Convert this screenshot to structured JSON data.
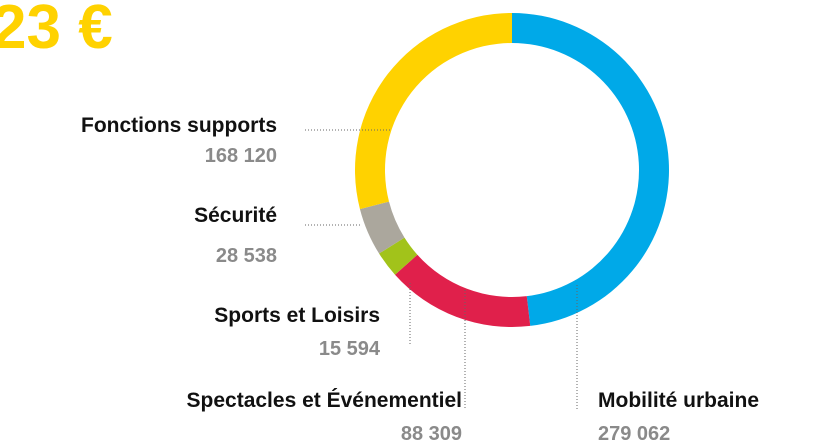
{
  "chart_data": {
    "type": "donut",
    "title": "23 €",
    "categories": [
      "Mobilité urbaine",
      "Spectacles et Événementiel",
      "Sports et Loisirs",
      "Sécurité",
      "Fonctions supports"
    ],
    "values": [
      279062,
      88309,
      15594,
      28538,
      168120
    ],
    "value_labels": [
      "279 062",
      "88 309",
      "15 594",
      "28 538",
      "168 120"
    ],
    "colors": [
      "#00a9e8",
      "#e0204b",
      "#a2c31a",
      "#aba79d",
      "#ffd200"
    ]
  }
}
